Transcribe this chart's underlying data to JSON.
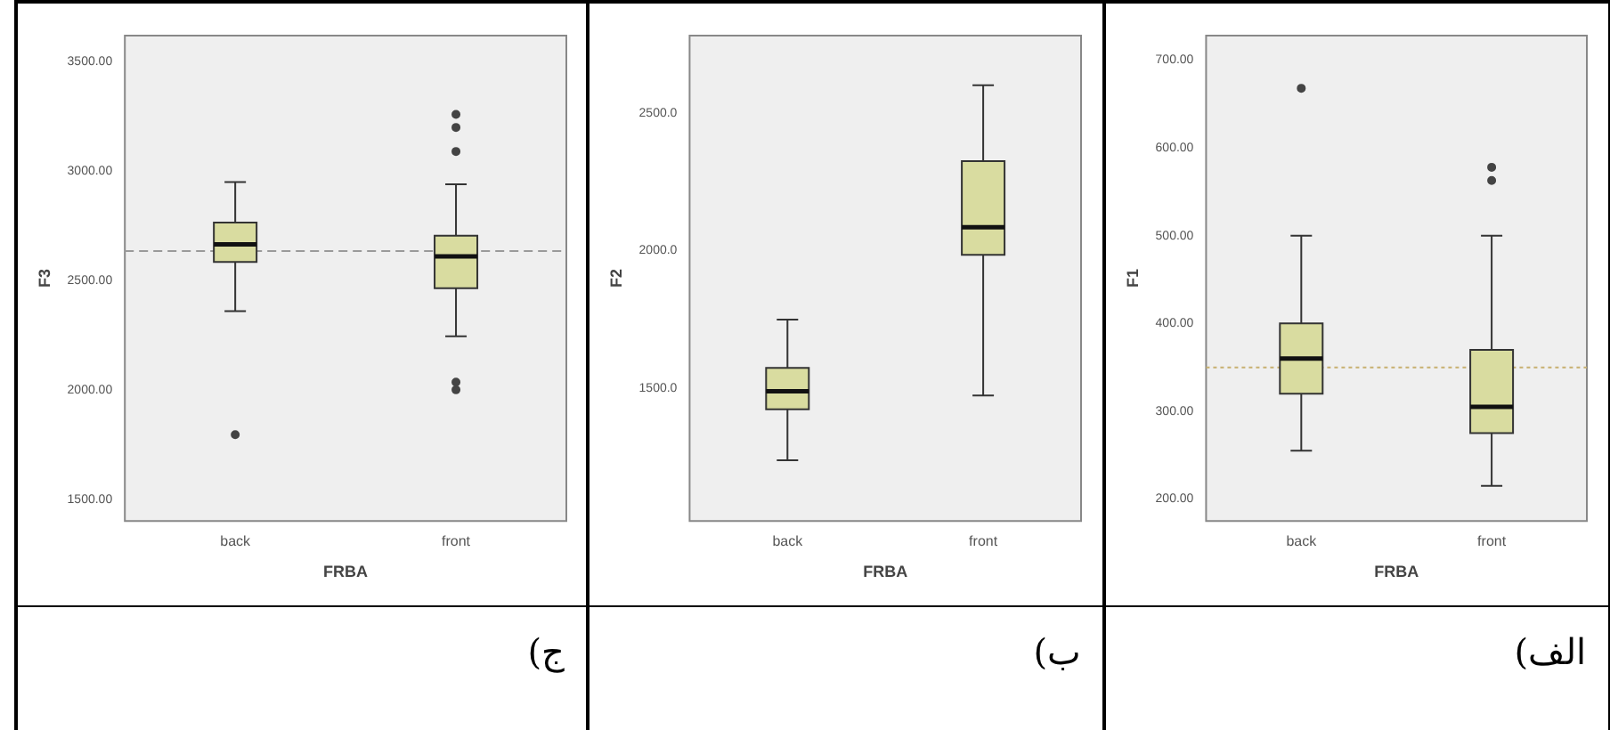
{
  "chart_data": [
    {
      "type": "box",
      "xlabel": "FRBA",
      "ylabel": "F3",
      "categories": [
        "back",
        "front"
      ],
      "ylim": [
        1400,
        3620
      ],
      "yticks": [
        {
          "value": 1500,
          "label": "1500.00"
        },
        {
          "value": 2000,
          "label": "2000.00"
        },
        {
          "value": 2500,
          "label": "2500.00"
        },
        {
          "value": 3000,
          "label": "3000.00"
        },
        {
          "value": 3500,
          "label": "3500.00"
        }
      ],
      "grid": false,
      "color": "#d9dca0",
      "boxes": [
        {
          "low": 2360,
          "q1": 2585,
          "median": 2665,
          "q3": 2765,
          "high": 2950,
          "outliers": [
            1795
          ]
        },
        {
          "low": 2245,
          "q1": 2465,
          "median": 2610,
          "q3": 2705,
          "high": 2940,
          "outliers": [
            3260,
            3200,
            3090,
            2035,
            2000
          ]
        }
      ],
      "ref_lines": [
        {
          "axis": "y",
          "value": 2635,
          "line_style": "dashed",
          "color": "#9a9a9a"
        }
      ],
      "annotations": [
        "ج)"
      ]
    },
    {
      "type": "box",
      "xlabel": "FRBA",
      "ylabel": "F2",
      "categories": [
        "back",
        "front"
      ],
      "ylim": [
        1020,
        2780
      ],
      "yticks": [
        {
          "value": 1500,
          "label": "1500.0"
        },
        {
          "value": 2000,
          "label": "2000.0"
        },
        {
          "value": 2500,
          "label": "2500.0"
        }
      ],
      "grid": false,
      "color": "#d9dca0",
      "boxes": [
        {
          "low": 1240,
          "q1": 1425,
          "median": 1490,
          "q3": 1575,
          "high": 1750
        },
        {
          "low": 1475,
          "q1": 1985,
          "median": 2085,
          "q3": 2325,
          "high": 2600
        }
      ],
      "annotations": [
        "ب)"
      ]
    },
    {
      "type": "box",
      "xlabel": "FRBA",
      "ylabel": "F1",
      "categories": [
        "back",
        "front"
      ],
      "ylim": [
        175,
        728
      ],
      "yticks": [
        {
          "value": 200,
          "label": "200.00"
        },
        {
          "value": 300,
          "label": "300.00"
        },
        {
          "value": 400,
          "label": "400.00"
        },
        {
          "value": 500,
          "label": "500.00"
        },
        {
          "value": 600,
          "label": "600.00"
        },
        {
          "value": 700,
          "label": "700.00"
        }
      ],
      "grid": false,
      "color": "#d9dca0",
      "boxes": [
        {
          "low": 255,
          "q1": 320,
          "median": 360,
          "q3": 400,
          "high": 500,
          "outliers": [
            668
          ]
        },
        {
          "low": 215,
          "q1": 275,
          "median": 305,
          "q3": 370,
          "high": 500,
          "outliers": [
            578,
            563
          ]
        }
      ],
      "ref_lines": [
        {
          "axis": "y",
          "value": 350,
          "line_style": "dotted",
          "color": "#c8b070"
        }
      ],
      "annotations": [
        "الف)"
      ]
    }
  ]
}
